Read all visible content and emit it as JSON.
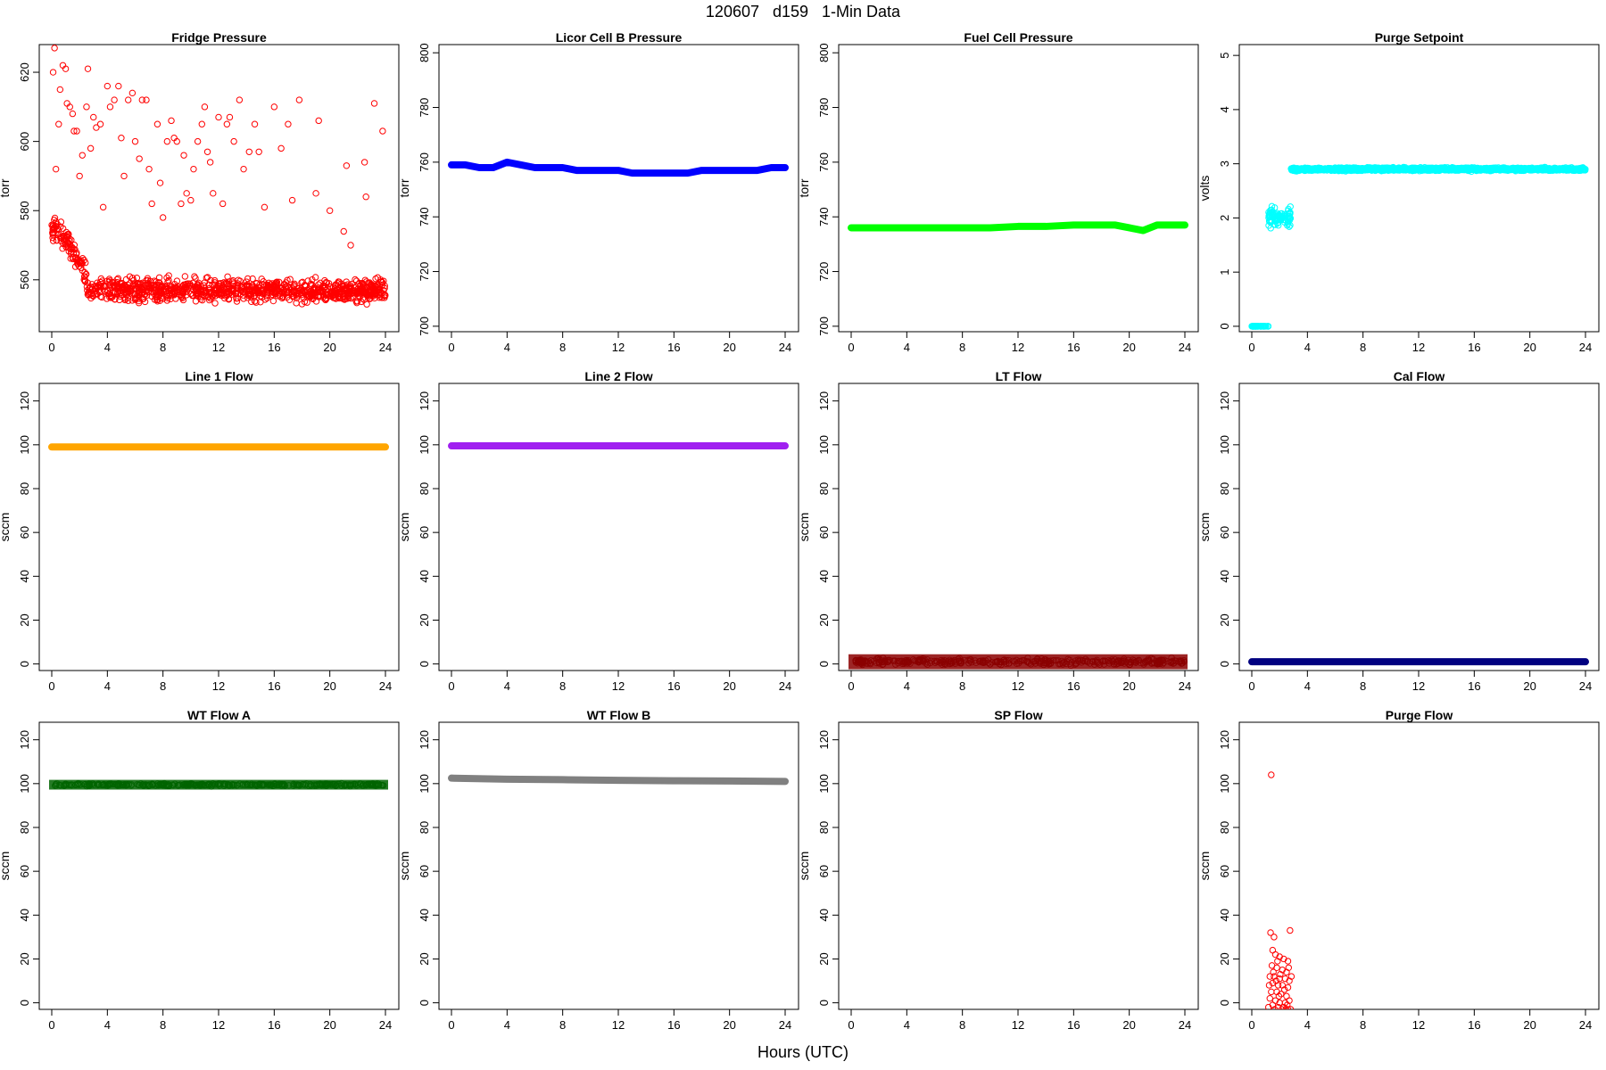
{
  "figure": {
    "title": "120607   d159   1-Min Data",
    "xlabel": "Hours (UTC)"
  },
  "chart_data": [
    {
      "type": "scatter",
      "title": "Fridge Pressure",
      "ylabel": "torr",
      "xlim": [
        0,
        24
      ],
      "ylim": [
        545,
        628
      ],
      "xticks": [
        0,
        4,
        8,
        12,
        16,
        20,
        24
      ],
      "yticks": [
        560,
        580,
        600,
        620
      ],
      "color": "#ff0000",
      "style": "open",
      "pattern": "fridge",
      "points": [
        [
          0.1,
          620
        ],
        [
          0.2,
          627
        ],
        [
          0.3,
          592
        ],
        [
          0.5,
          605
        ],
        [
          0.6,
          615
        ],
        [
          0.8,
          622
        ],
        [
          1.0,
          621
        ],
        [
          1.1,
          611
        ],
        [
          1.3,
          610
        ],
        [
          1.5,
          608
        ],
        [
          1.6,
          603
        ],
        [
          1.8,
          603
        ],
        [
          2.0,
          590
        ],
        [
          2.2,
          596
        ],
        [
          2.5,
          610
        ],
        [
          2.6,
          621
        ],
        [
          2.8,
          598
        ],
        [
          3.0,
          607
        ],
        [
          3.2,
          604
        ],
        [
          3.5,
          605
        ],
        [
          3.7,
          581
        ],
        [
          4.0,
          616
        ],
        [
          4.2,
          610
        ],
        [
          4.5,
          612
        ],
        [
          4.8,
          616
        ],
        [
          5.0,
          601
        ],
        [
          5.2,
          590
        ],
        [
          5.5,
          612
        ],
        [
          5.8,
          614
        ],
        [
          6.0,
          600
        ],
        [
          6.3,
          595
        ],
        [
          6.5,
          612
        ],
        [
          6.8,
          612
        ],
        [
          7.0,
          592
        ],
        [
          7.2,
          582
        ],
        [
          7.6,
          605
        ],
        [
          7.8,
          588
        ],
        [
          8.0,
          578
        ],
        [
          8.3,
          600
        ],
        [
          8.6,
          606
        ],
        [
          8.8,
          601
        ],
        [
          9.0,
          600
        ],
        [
          9.3,
          582
        ],
        [
          9.5,
          596
        ],
        [
          9.7,
          585
        ],
        [
          10.0,
          583
        ],
        [
          10.2,
          592
        ],
        [
          10.5,
          600
        ],
        [
          10.8,
          605
        ],
        [
          11.0,
          610
        ],
        [
          11.2,
          597
        ],
        [
          11.4,
          594
        ],
        [
          11.6,
          585
        ],
        [
          12.0,
          607
        ],
        [
          12.3,
          582
        ],
        [
          12.6,
          605
        ],
        [
          12.8,
          607
        ],
        [
          13.1,
          600
        ],
        [
          13.5,
          612
        ],
        [
          13.8,
          592
        ],
        [
          14.2,
          597
        ],
        [
          14.6,
          605
        ],
        [
          14.9,
          597
        ],
        [
          15.3,
          581
        ],
        [
          16.0,
          610
        ],
        [
          16.5,
          598
        ],
        [
          17.0,
          605
        ],
        [
          17.3,
          583
        ],
        [
          17.8,
          612
        ],
        [
          19.0,
          585
        ],
        [
          19.2,
          606
        ],
        [
          20.0,
          580
        ],
        [
          21.0,
          574
        ],
        [
          21.2,
          593
        ],
        [
          21.5,
          570
        ],
        [
          22.5,
          594
        ],
        [
          22.6,
          584
        ],
        [
          23.2,
          611
        ],
        [
          23.8,
          603
        ]
      ]
    },
    {
      "type": "line",
      "title": "Licor Cell B Pressure",
      "ylabel": "torr",
      "xlim": [
        0,
        24
      ],
      "ylim": [
        698,
        803
      ],
      "xticks": [
        0,
        4,
        8,
        12,
        16,
        20,
        24
      ],
      "yticks": [
        700,
        720,
        740,
        760,
        780,
        800
      ],
      "color": "#0000ff",
      "style": "thick",
      "x": [
        0,
        1,
        2,
        3,
        4,
        5,
        6,
        7,
        8,
        9,
        10,
        11,
        12,
        13,
        14,
        15,
        16,
        17,
        18,
        19,
        20,
        21,
        22,
        23,
        24
      ],
      "y": [
        759,
        759,
        758,
        758,
        760,
        759,
        758,
        758,
        758,
        757,
        757,
        757,
        757,
        756,
        756,
        756,
        756,
        756,
        757,
        757,
        757,
        757,
        757,
        758,
        758
      ]
    },
    {
      "type": "line",
      "title": "Fuel Cell Pressure",
      "ylabel": "torr",
      "xlim": [
        0,
        24
      ],
      "ylim": [
        698,
        803
      ],
      "xticks": [
        0,
        4,
        8,
        12,
        16,
        20,
        24
      ],
      "yticks": [
        700,
        720,
        740,
        760,
        780,
        800
      ],
      "color": "#00ff00",
      "style": "thick",
      "x": [
        0,
        2,
        4,
        6,
        8,
        10,
        12,
        14,
        16,
        18,
        19,
        20,
        21,
        22,
        24
      ],
      "y": [
        736,
        736,
        736,
        736,
        736,
        736,
        736.5,
        736.5,
        737,
        737,
        737,
        736,
        735,
        737,
        737
      ]
    },
    {
      "type": "scatter",
      "title": "Purge Setpoint",
      "ylabel": "volts",
      "xlim": [
        0,
        24
      ],
      "ylim": [
        -0.1,
        5.2
      ],
      "xticks": [
        0,
        4,
        8,
        12,
        16,
        20,
        24
      ],
      "yticks": [
        0,
        1,
        2,
        3,
        4,
        5
      ],
      "color": "#00ffff",
      "style": "open",
      "pattern": "purge",
      "segments": [
        {
          "x": [
            0,
            1.2
          ],
          "y": 0
        },
        {
          "x": [
            1.2,
            2.8
          ],
          "y": 2.0,
          "spread": 0.17
        },
        {
          "x": [
            2.8,
            24
          ],
          "y": 2.9,
          "spread": 0.03
        }
      ]
    },
    {
      "type": "line",
      "title": "Line 1 Flow",
      "ylabel": "sccm",
      "xlim": [
        0,
        24
      ],
      "ylim": [
        -3,
        128
      ],
      "xticks": [
        0,
        4,
        8,
        12,
        16,
        20,
        24
      ],
      "yticks": [
        0,
        20,
        40,
        60,
        80,
        100,
        120
      ],
      "color": "#ffa500",
      "style": "thick",
      "x": [
        0,
        24
      ],
      "y": [
        99,
        99
      ]
    },
    {
      "type": "line",
      "title": "Line 2 Flow",
      "ylabel": "sccm",
      "xlim": [
        0,
        24
      ],
      "ylim": [
        -3,
        128
      ],
      "xticks": [
        0,
        4,
        8,
        12,
        16,
        20,
        24
      ],
      "yticks": [
        0,
        20,
        40,
        60,
        80,
        100,
        120
      ],
      "color": "#a020f0",
      "style": "thick",
      "x": [
        0,
        24
      ],
      "y": [
        99.5,
        99.5
      ]
    },
    {
      "type": "line",
      "title": "LT Flow",
      "ylabel": "sccm",
      "xlim": [
        0,
        24
      ],
      "ylim": [
        -3,
        128
      ],
      "xticks": [
        0,
        4,
        8,
        12,
        16,
        20,
        24
      ],
      "yticks": [
        0,
        20,
        40,
        60,
        80,
        100,
        120
      ],
      "color": "#8b0000",
      "style": "band",
      "x": [
        0,
        24
      ],
      "y": [
        1,
        1
      ],
      "spread": 2.2
    },
    {
      "type": "line",
      "title": "Cal Flow",
      "ylabel": "sccm",
      "xlim": [
        0,
        24
      ],
      "ylim": [
        -3,
        128
      ],
      "xticks": [
        0,
        4,
        8,
        12,
        16,
        20,
        24
      ],
      "yticks": [
        0,
        20,
        40,
        60,
        80,
        100,
        120
      ],
      "color": "#000080",
      "style": "thick",
      "x": [
        0,
        24
      ],
      "y": [
        1,
        1
      ]
    },
    {
      "type": "line",
      "title": "WT Flow A",
      "ylabel": "sccm",
      "xlim": [
        0,
        24
      ],
      "ylim": [
        -3,
        128
      ],
      "xticks": [
        0,
        4,
        8,
        12,
        16,
        20,
        24
      ],
      "yticks": [
        0,
        20,
        40,
        60,
        80,
        100,
        120
      ],
      "color": "#006400",
      "style": "band",
      "x": [
        0,
        24
      ],
      "y": [
        99.5,
        99.5
      ],
      "spread": 1
    },
    {
      "type": "line",
      "title": "WT Flow B",
      "ylabel": "sccm",
      "xlim": [
        0,
        24
      ],
      "ylim": [
        -3,
        128
      ],
      "xticks": [
        0,
        4,
        8,
        12,
        16,
        20,
        24
      ],
      "yticks": [
        0,
        20,
        40,
        60,
        80,
        100,
        120
      ],
      "color": "#808080",
      "style": "thick",
      "x": [
        0,
        4,
        8,
        12,
        16,
        20,
        24
      ],
      "y": [
        102.5,
        102,
        101.8,
        101.5,
        101.3,
        101.2,
        101
      ]
    },
    {
      "type": "scatter",
      "title": "SP Flow",
      "ylabel": "sccm",
      "xlim": [
        0,
        24
      ],
      "ylim": [
        -3,
        128
      ],
      "xticks": [
        0,
        4,
        8,
        12,
        16,
        20,
        24
      ],
      "yticks": [
        0,
        20,
        40,
        60,
        80,
        100,
        120
      ],
      "color": "#ff0000",
      "style": "open",
      "points": []
    },
    {
      "type": "scatter",
      "title": "Purge Flow",
      "ylabel": "sccm",
      "xlim": [
        0,
        24
      ],
      "ylim": [
        -3,
        128
      ],
      "xticks": [
        0,
        4,
        8,
        12,
        16,
        20,
        24
      ],
      "yticks": [
        0,
        20,
        40,
        60,
        80,
        100,
        120
      ],
      "color": "#ff0000",
      "style": "open",
      "points": [
        [
          1.4,
          104
        ],
        [
          1.35,
          32
        ],
        [
          1.6,
          30
        ],
        [
          2.75,
          33
        ],
        [
          1.5,
          24
        ],
        [
          1.7,
          22
        ],
        [
          2.0,
          21
        ],
        [
          2.3,
          20
        ],
        [
          2.6,
          19
        ],
        [
          1.45,
          17
        ],
        [
          1.8,
          16
        ],
        [
          2.2,
          15
        ],
        [
          2.5,
          14
        ],
        [
          1.3,
          12
        ],
        [
          1.6,
          12
        ],
        [
          2.0,
          11
        ],
        [
          2.4,
          11
        ],
        [
          2.7,
          10
        ],
        [
          1.5,
          9
        ],
        [
          1.9,
          8
        ],
        [
          2.2,
          8
        ],
        [
          2.6,
          7
        ],
        [
          1.4,
          5
        ],
        [
          1.8,
          5
        ],
        [
          2.1,
          4
        ],
        [
          2.5,
          3
        ],
        [
          1.3,
          2
        ],
        [
          1.7,
          1
        ],
        [
          2.0,
          0
        ],
        [
          2.4,
          0
        ],
        [
          2.7,
          1
        ],
        [
          1.5,
          -1
        ],
        [
          1.9,
          -2
        ],
        [
          2.3,
          -2
        ],
        [
          2.6,
          -3
        ],
        [
          1.2,
          -2
        ],
        [
          2.8,
          -3
        ],
        [
          1.65,
          -3
        ],
        [
          2.15,
          -3
        ],
        [
          2.45,
          -3
        ],
        [
          1.55,
          14
        ],
        [
          2.05,
          13
        ],
        [
          2.65,
          16
        ],
        [
          1.75,
          10
        ],
        [
          2.35,
          6
        ],
        [
          1.25,
          8
        ],
        [
          2.85,
          12
        ],
        [
          1.95,
          3
        ],
        [
          2.55,
          -1
        ],
        [
          1.85,
          19
        ]
      ]
    }
  ]
}
